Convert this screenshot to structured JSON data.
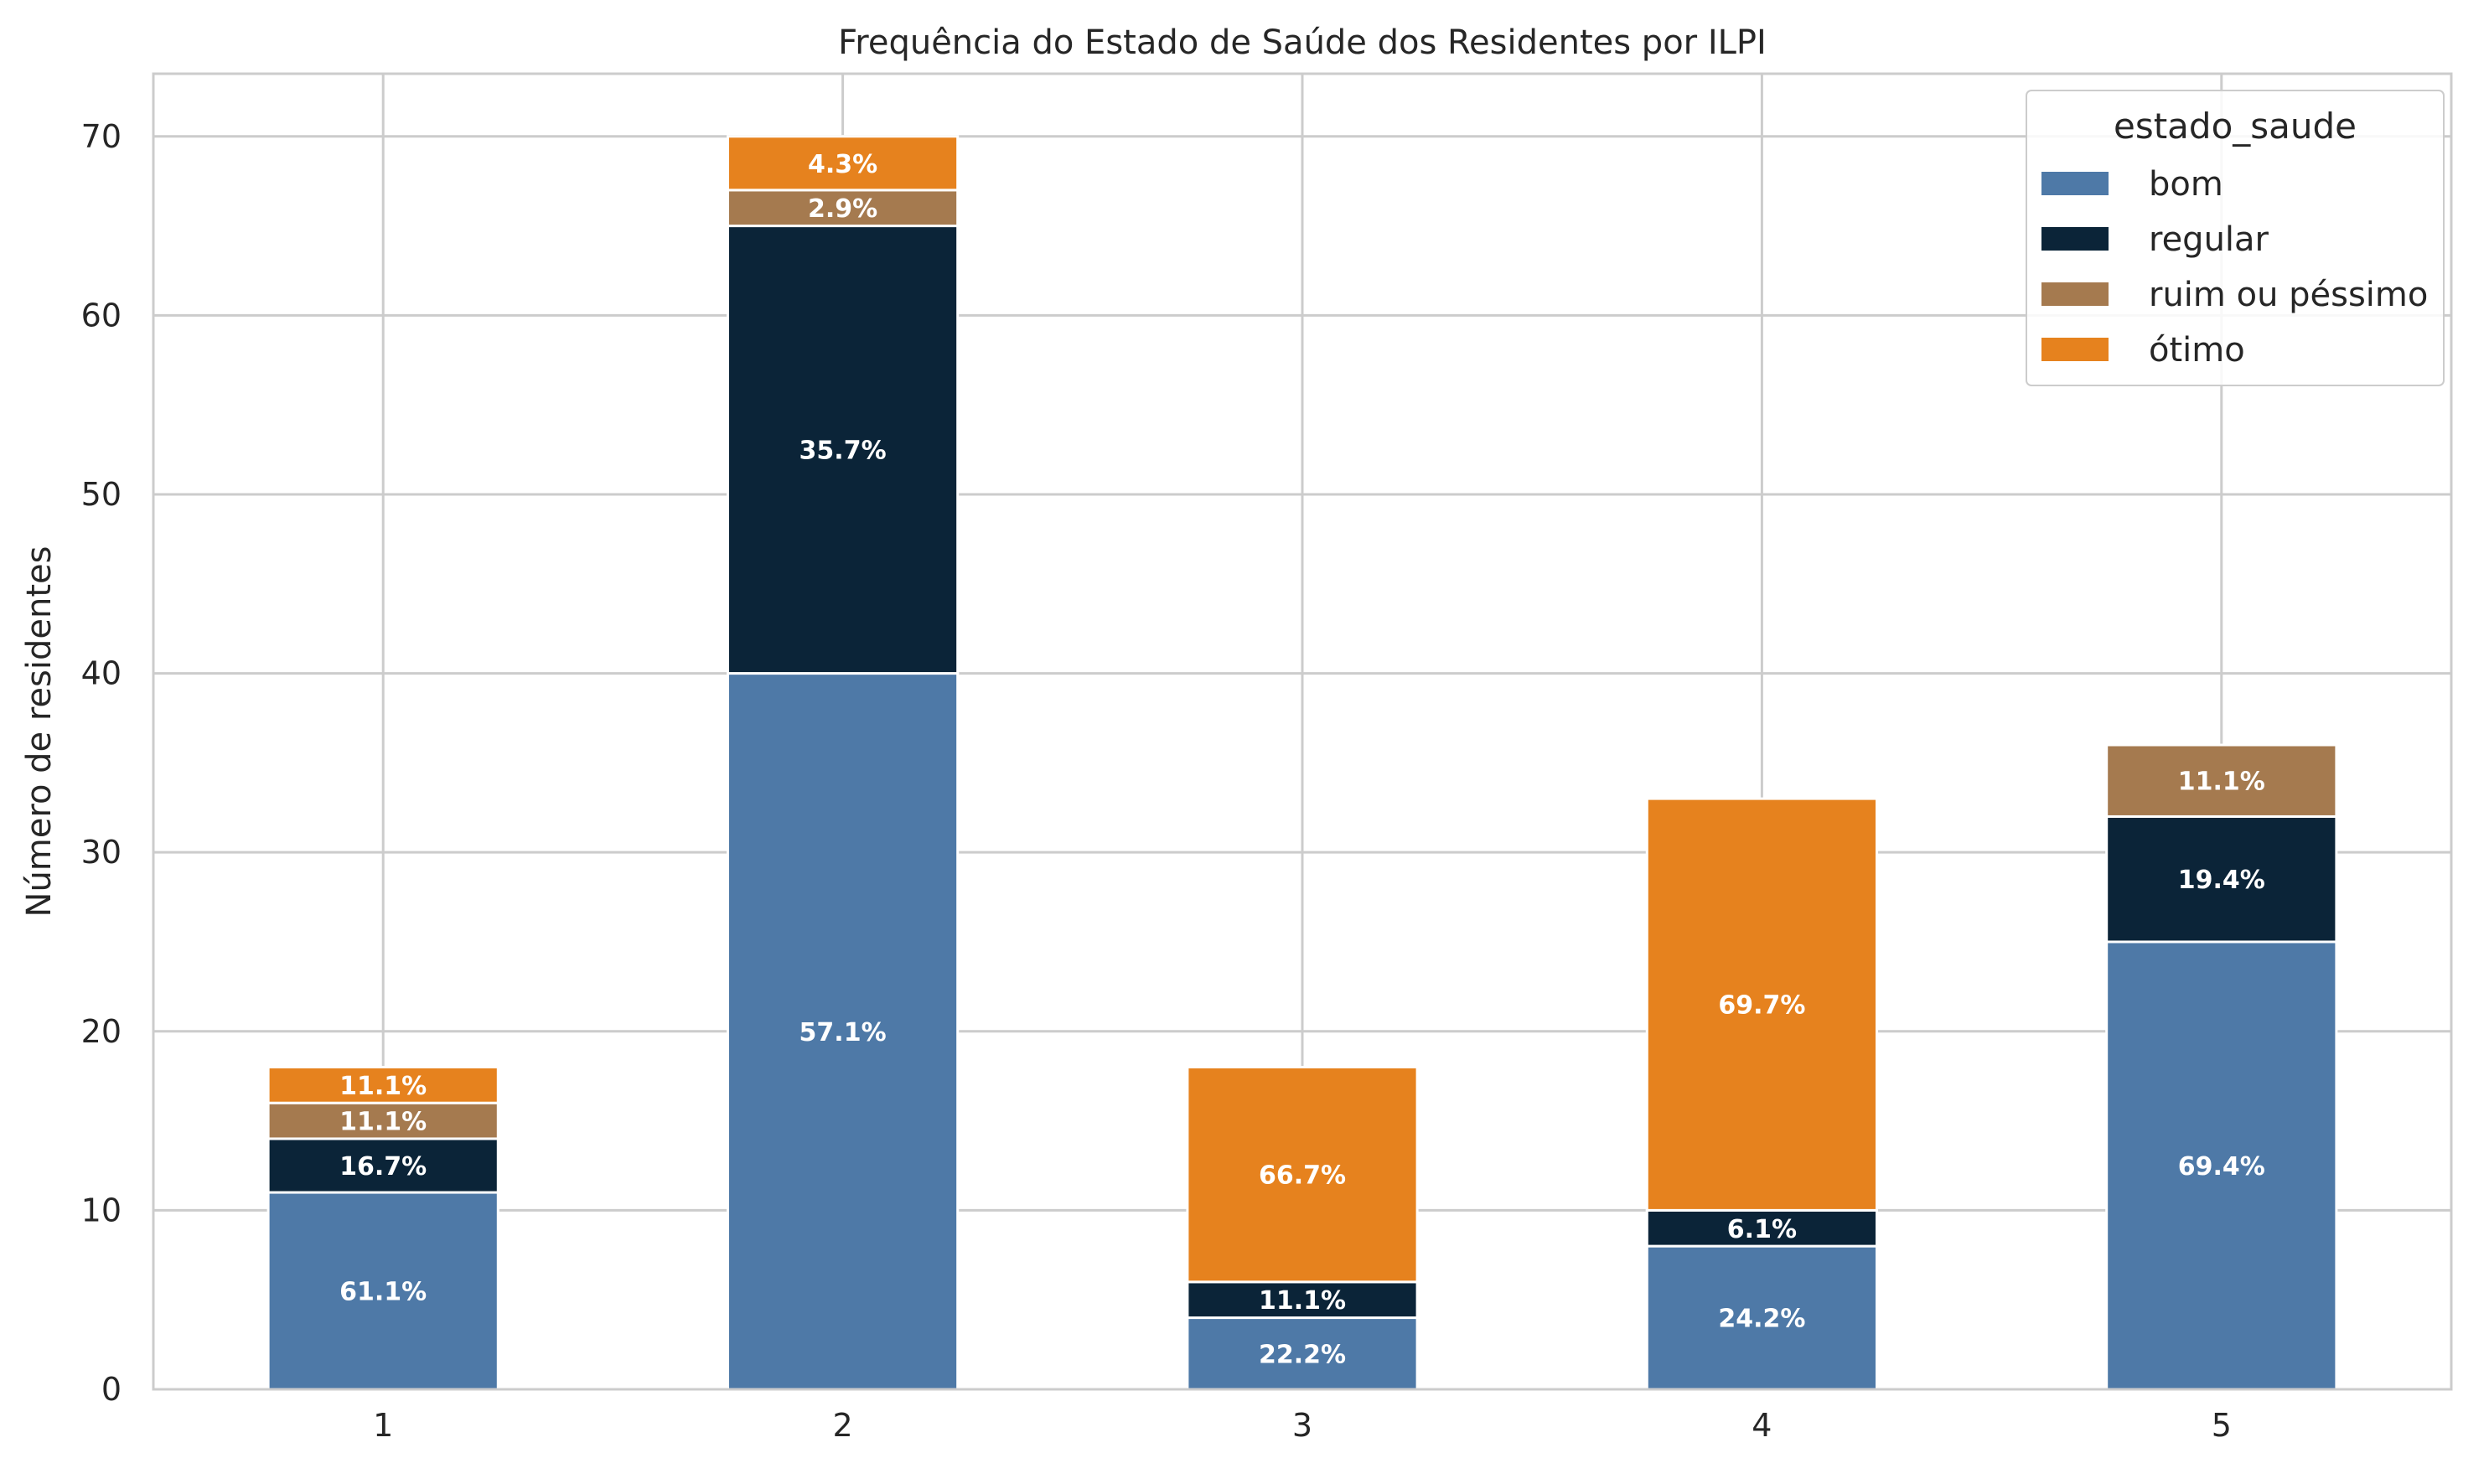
{
  "chart_data": {
    "type": "bar",
    "stacked": true,
    "title": "Frequência do Estado de Saúde dos Residentes por ILPI",
    "xlabel": "",
    "ylabel": "Número de residentes",
    "categories": [
      "1",
      "2",
      "3",
      "4",
      "5"
    ],
    "ylim": [
      0,
      73.5
    ],
    "yticks": [
      0,
      10,
      20,
      30,
      40,
      50,
      60,
      70
    ],
    "grid": true,
    "legend": {
      "title": "estado_saude",
      "placement": "top-right"
    },
    "series": [
      {
        "name": "bom",
        "color": "#4e79a7",
        "values": [
          11,
          40,
          4,
          8,
          25
        ],
        "labels": [
          "61.1%",
          "57.1%",
          "22.2%",
          "24.2%",
          "69.4%"
        ]
      },
      {
        "name": "regular",
        "color": "#0b2438",
        "values": [
          3,
          25,
          2,
          2,
          7
        ],
        "labels": [
          "16.7%",
          "35.7%",
          "11.1%",
          "6.1%",
          "19.4%"
        ]
      },
      {
        "name": "ruim ou péssimo",
        "color": "#a57a4f",
        "values": [
          2,
          2,
          0,
          0,
          4
        ],
        "labels": [
          "11.1%",
          "2.9%",
          "",
          "",
          "11.1%"
        ]
      },
      {
        "name": "ótimo",
        "color": "#e6821e",
        "values": [
          2,
          3,
          12,
          23,
          0
        ],
        "labels": [
          "11.1%",
          "4.3%",
          "66.7%",
          "69.7%",
          ""
        ]
      }
    ]
  }
}
